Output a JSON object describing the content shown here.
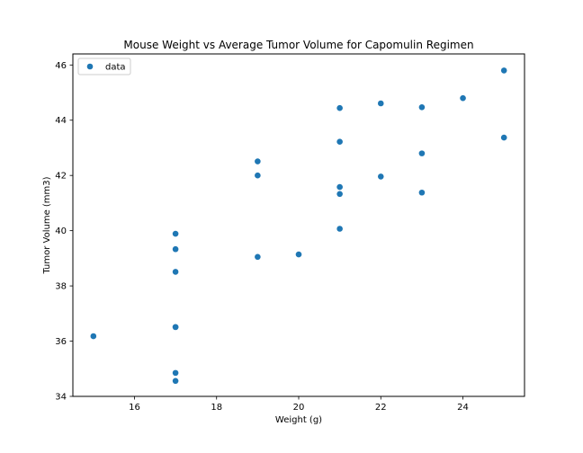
{
  "chart_data": {
    "type": "scatter",
    "title": "Mouse Weight vs Average Tumor Volume for Capomulin Regimen",
    "xlabel": "Weight (g)",
    "ylabel": "Tumor Volume (mm3)",
    "xlim": [
      14.5,
      25.5
    ],
    "ylim": [
      34,
      46.4
    ],
    "xticks": [
      16,
      18,
      20,
      22,
      24
    ],
    "yticks": [
      34,
      36,
      38,
      40,
      42,
      44,
      46
    ],
    "grid": false,
    "legend_position": "upper-left",
    "series": [
      {
        "name": "data",
        "color": "#1f77b4",
        "points": [
          {
            "x": 15,
            "y": 36.18
          },
          {
            "x": 17,
            "y": 34.56
          },
          {
            "x": 17,
            "y": 34.85
          },
          {
            "x": 17,
            "y": 36.51
          },
          {
            "x": 17,
            "y": 36.51
          },
          {
            "x": 17,
            "y": 38.51
          },
          {
            "x": 17,
            "y": 39.33
          },
          {
            "x": 17,
            "y": 39.89
          },
          {
            "x": 19,
            "y": 39.05
          },
          {
            "x": 19,
            "y": 42.0
          },
          {
            "x": 19,
            "y": 42.51
          },
          {
            "x": 20,
            "y": 39.14
          },
          {
            "x": 21,
            "y": 40.07
          },
          {
            "x": 21,
            "y": 41.33
          },
          {
            "x": 21,
            "y": 41.58
          },
          {
            "x": 21,
            "y": 43.22
          },
          {
            "x": 21,
            "y": 44.44
          },
          {
            "x": 22,
            "y": 41.96
          },
          {
            "x": 22,
            "y": 44.61
          },
          {
            "x": 23,
            "y": 41.38
          },
          {
            "x": 23,
            "y": 42.8
          },
          {
            "x": 23,
            "y": 44.47
          },
          {
            "x": 24,
            "y": 44.8
          },
          {
            "x": 25,
            "y": 43.37
          },
          {
            "x": 25,
            "y": 45.8
          }
        ]
      }
    ]
  }
}
